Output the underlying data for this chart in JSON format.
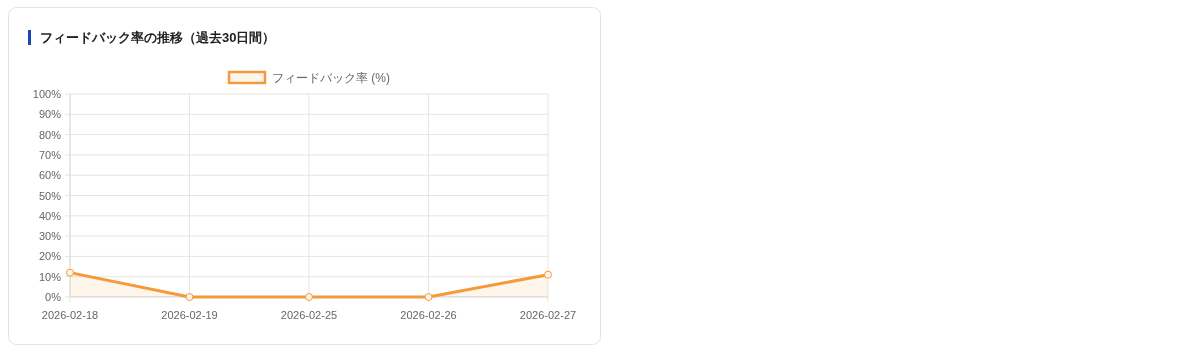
{
  "chart_data": {
    "type": "area",
    "title": "フィードバック率の推移（過去30日間）",
    "categories": [
      "2026-02-18",
      "2026-02-19",
      "2026-02-25",
      "2026-02-26",
      "2026-02-27"
    ],
    "series": [
      {
        "name": "フィードバック率 (%)",
        "color": "#f59a3a",
        "values": [
          12,
          0,
          0,
          0,
          11
        ]
      }
    ],
    "ylim": [
      0,
      100
    ],
    "yticks": [
      {
        "value": 0,
        "label": "0%"
      },
      {
        "value": 10,
        "label": "10%"
      },
      {
        "value": 20,
        "label": "20%"
      },
      {
        "value": 30,
        "label": "30%"
      },
      {
        "value": 40,
        "label": "40%"
      },
      {
        "value": 50,
        "label": "50%"
      },
      {
        "value": 60,
        "label": "60%"
      },
      {
        "value": 70,
        "label": "70%"
      },
      {
        "value": 80,
        "label": "80%"
      },
      {
        "value": 90,
        "label": "90%"
      },
      {
        "value": 100,
        "label": "100%"
      }
    ],
    "grid": true,
    "legend": "top",
    "marker": "circle",
    "line_style": "solid"
  }
}
